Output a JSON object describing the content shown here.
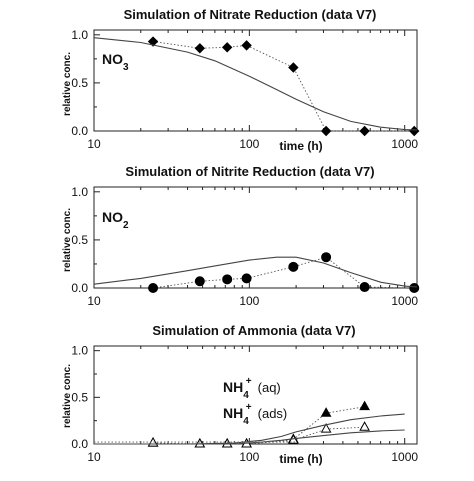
{
  "chart_data": [
    {
      "type": "line",
      "title": "Simulation of Nitrate Reduction (data V7)",
      "ylabel": "relative conc.",
      "xlabel": "time (h)",
      "xscale": "log",
      "xlim": [
        10,
        1200
      ],
      "ylim": [
        0,
        1.05
      ],
      "xticks": [
        "10",
        "100",
        "1000"
      ],
      "yticks": [
        "0.0",
        "0.5",
        "1.0"
      ],
      "annotation": {
        "main": "NO",
        "sub": "3",
        "sup": "",
        "paren": ""
      },
      "series": [
        {
          "marker": "diamond",
          "fill": "filled",
          "x": [
            24,
            48,
            72,
            96,
            192,
            312,
            552,
            1152
          ],
          "y": [
            0.93,
            0.86,
            0.87,
            0.89,
            0.66,
            0.0,
            0.0,
            0.0
          ]
        },
        {
          "marker": "none",
          "style": "solid",
          "x": [
            10,
            20,
            40,
            60,
            100,
            150,
            200,
            300,
            450,
            700,
            1000,
            1200
          ],
          "y": [
            0.97,
            0.92,
            0.82,
            0.73,
            0.57,
            0.43,
            0.33,
            0.2,
            0.1,
            0.04,
            0.015,
            0.01
          ]
        }
      ]
    },
    {
      "type": "line",
      "title": "Simulation of Nitrite Reduction (data V7)",
      "ylabel": "relative conc.",
      "xlabel": "time (h)",
      "xscale": "log",
      "xlim": [
        10,
        1200
      ],
      "ylim": [
        0,
        1.05
      ],
      "xticks": [
        "10",
        "100",
        "1000"
      ],
      "yticks": [
        "0.0",
        "0.5",
        "1.0"
      ],
      "annotation": {
        "main": "NO",
        "sub": "2",
        "sup": "",
        "paren": ""
      },
      "series": [
        {
          "marker": "circle",
          "fill": "filled",
          "x": [
            24,
            48,
            72,
            96,
            192,
            312,
            552,
            1152
          ],
          "y": [
            0.0,
            0.07,
            0.09,
            0.1,
            0.22,
            0.32,
            0.01,
            0.0
          ]
        },
        {
          "marker": "none",
          "style": "solid",
          "x": [
            10,
            20,
            40,
            60,
            100,
            150,
            200,
            300,
            450,
            700,
            1000,
            1200
          ],
          "y": [
            0.04,
            0.1,
            0.18,
            0.23,
            0.29,
            0.32,
            0.32,
            0.26,
            0.16,
            0.06,
            0.02,
            0.01
          ]
        }
      ]
    },
    {
      "type": "line",
      "title": "Simulation of Ammonia (data V7)",
      "ylabel": "relative conc.",
      "xlabel": "time (h)",
      "xscale": "log",
      "xlim": [
        10,
        1200
      ],
      "ylim": [
        0,
        1.05
      ],
      "xticks": [
        "10",
        "100",
        "1000"
      ],
      "yticks": [
        "0.0",
        "0.5",
        "1.0"
      ],
      "annotations": [
        {
          "main": "NH",
          "sub": "4",
          "sup": "+",
          "paren": "(aq)"
        },
        {
          "main": "NH",
          "sub": "4",
          "sup": "+",
          "paren": "(ads)"
        }
      ],
      "series": [
        {
          "marker": "triangle",
          "fill": "filled",
          "x": [
            24,
            48,
            72,
            96,
            192,
            312,
            552
          ],
          "y": [
            0.01,
            0.0,
            0.0,
            0.0,
            0.05,
            0.33,
            0.4
          ]
        },
        {
          "marker": "triangle",
          "fill": "open",
          "x": [
            24,
            48,
            72,
            96,
            192,
            312,
            552
          ],
          "y": [
            0.01,
            0.0,
            0.0,
            0.0,
            0.04,
            0.16,
            0.18
          ]
        },
        {
          "marker": "none",
          "style": "solid",
          "x": [
            10,
            40,
            80,
            120,
            160,
            200,
            300,
            450,
            700,
            1000
          ],
          "y": [
            0.0,
            0.0,
            0.01,
            0.04,
            0.08,
            0.13,
            0.2,
            0.26,
            0.3,
            0.32
          ]
        },
        {
          "marker": "none",
          "style": "solid",
          "x": [
            10,
            40,
            80,
            120,
            160,
            200,
            300,
            450,
            700,
            1000
          ],
          "y": [
            0.0,
            0.0,
            0.0,
            0.02,
            0.04,
            0.06,
            0.09,
            0.12,
            0.14,
            0.15
          ]
        },
        {
          "marker": "none",
          "style": "dotted",
          "x": [
            10,
            40,
            80,
            120,
            160,
            200
          ],
          "y": [
            0.02,
            0.02,
            0.02,
            0.02,
            0.02,
            0.02
          ]
        }
      ]
    }
  ]
}
